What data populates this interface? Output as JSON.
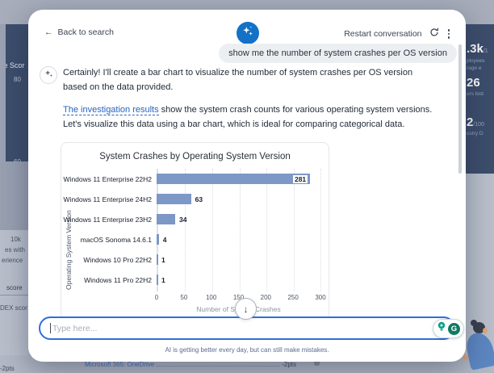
{
  "background": {
    "left_chart": {
      "title_partial": "ce Scor",
      "tick_top": "80",
      "tick_bottom": "60"
    },
    "left_panel": {
      "line1": "10k",
      "line2": "es with",
      "line3": "erience",
      "tab1": "score",
      "tab2": "DEX scor"
    },
    "right_metrics": [
      {
        "value": ".3k",
        "suffix": "/1",
        "line1": "ployees",
        "line2": "rage e"
      },
      {
        "value": "26",
        "suffix": "",
        "line1": "urs lost",
        "line2": ""
      },
      {
        "value": "2",
        "suffix": "/100",
        "line1": "ustry D",
        "line2": ""
      }
    ],
    "bottom_row": {
      "link": "Microsoft 365: OneDrive",
      "value": "-2pts",
      "left_value": "-2pts"
    }
  },
  "modal": {
    "header": {
      "back_label": "Back to search",
      "back_arrow": "←",
      "restart_label": "Restart conversation"
    },
    "user_message": "show me the number of system crashes per OS version",
    "assistant": {
      "paragraph1": "Certainly! I'll create a bar chart to visualize the number of system crashes per OS version based on the data provided.",
      "link_text": "The investigation results",
      "paragraph2_rest": " show the system crash counts for various operating system versions. Let's visualize this data using a bar chart, which is ideal for comparing categorical data."
    },
    "scroll_down_glyph": "↓",
    "input": {
      "placeholder": "Type here..."
    },
    "grammarly_letter": "G",
    "footer_note": "AI is getting better every day, but can still make mistakes."
  },
  "chart_data": {
    "type": "bar",
    "orientation": "horizontal",
    "title": "System Crashes by Operating System Version",
    "categories": [
      "Windows 11 Enterprise 22H2",
      "Windows 11 Enterprise 24H2",
      "Windows 11 Enterprise 23H2",
      "macOS Sonoma 14.6.1",
      "Windows 10 Pro 22H2",
      "Windows 11 Pro 22H2"
    ],
    "values": [
      281,
      63,
      34,
      4,
      1,
      1
    ],
    "xlabel": "Number of System Crashes",
    "ylabel": "Operating System Version",
    "xlim": [
      0,
      300
    ],
    "xticks": [
      0,
      50,
      100,
      150,
      200,
      250,
      300
    ],
    "grid": "dotted-vertical",
    "legend": "none",
    "bar_color": "#7d97c6",
    "inside_label_threshold": 0.8
  },
  "colors": {
    "accent_blue": "#1371c8",
    "link_blue": "#2563c0",
    "input_border": "#2e6fd5",
    "navy_panel": "#3d4e6c",
    "grammarly_green": "#0e7a5f",
    "bar_blue": "#7d97c6"
  }
}
